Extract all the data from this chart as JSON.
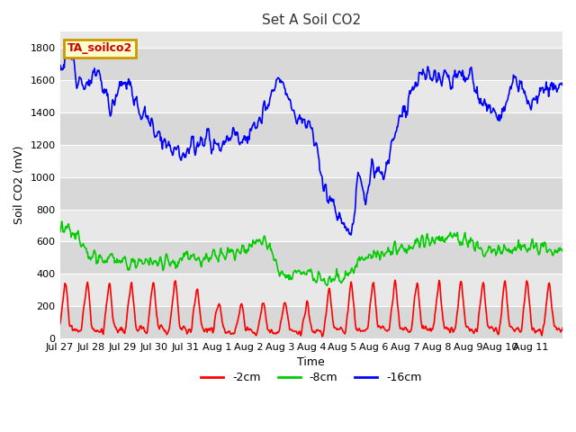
{
  "title": "Set A Soil CO2",
  "xlabel": "Time",
  "ylabel": "Soil CO2 (mV)",
  "ylim": [
    0,
    1900
  ],
  "yticks": [
    0,
    200,
    400,
    600,
    800,
    1000,
    1200,
    1400,
    1600,
    1800
  ],
  "background_color": "#ffffff",
  "plot_bg_color": "#e8e8e8",
  "grid_color": "#ffffff",
  "legend_label": "TA_soilco2",
  "legend_bg": "#ffffcc",
  "legend_border": "#cc9900",
  "line_2cm_color": "#ff0000",
  "line_8cm_color": "#00cc00",
  "line_16cm_color": "#0000ff",
  "xtick_labels": [
    "Jul 27",
    "Jul 28",
    "Jul 29",
    "Jul 30",
    "Jul 31",
    "Aug 1",
    "Aug 2",
    "Aug 3",
    "Aug 4",
    "Aug 5",
    "Aug 6",
    "Aug 7",
    "Aug 8",
    "Aug 9",
    "Aug 10",
    "Aug 11"
  ],
  "n_points": 800
}
